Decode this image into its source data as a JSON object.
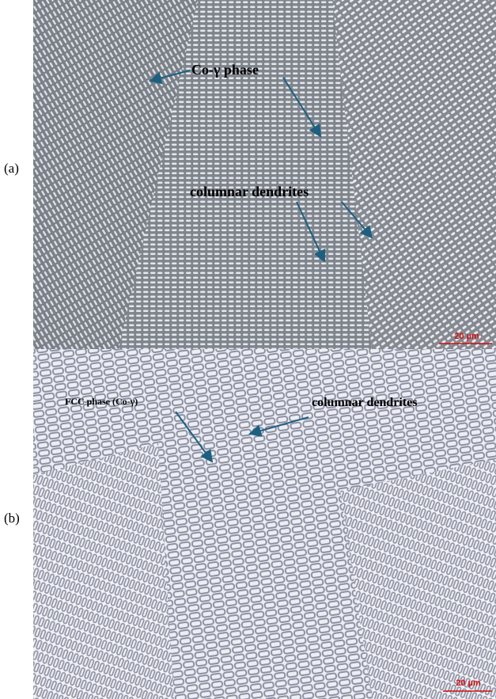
{
  "panels": [
    {
      "label": "(a)",
      "annotations": [
        "Co-γ phase",
        "columnar dendrites"
      ],
      "scale_bar": "20 µm"
    },
    {
      "label": "(b)",
      "annotations": [
        "FCC phase (Co-γ)",
        "columnar dendrites"
      ],
      "scale_bar": "20 µm"
    }
  ]
}
